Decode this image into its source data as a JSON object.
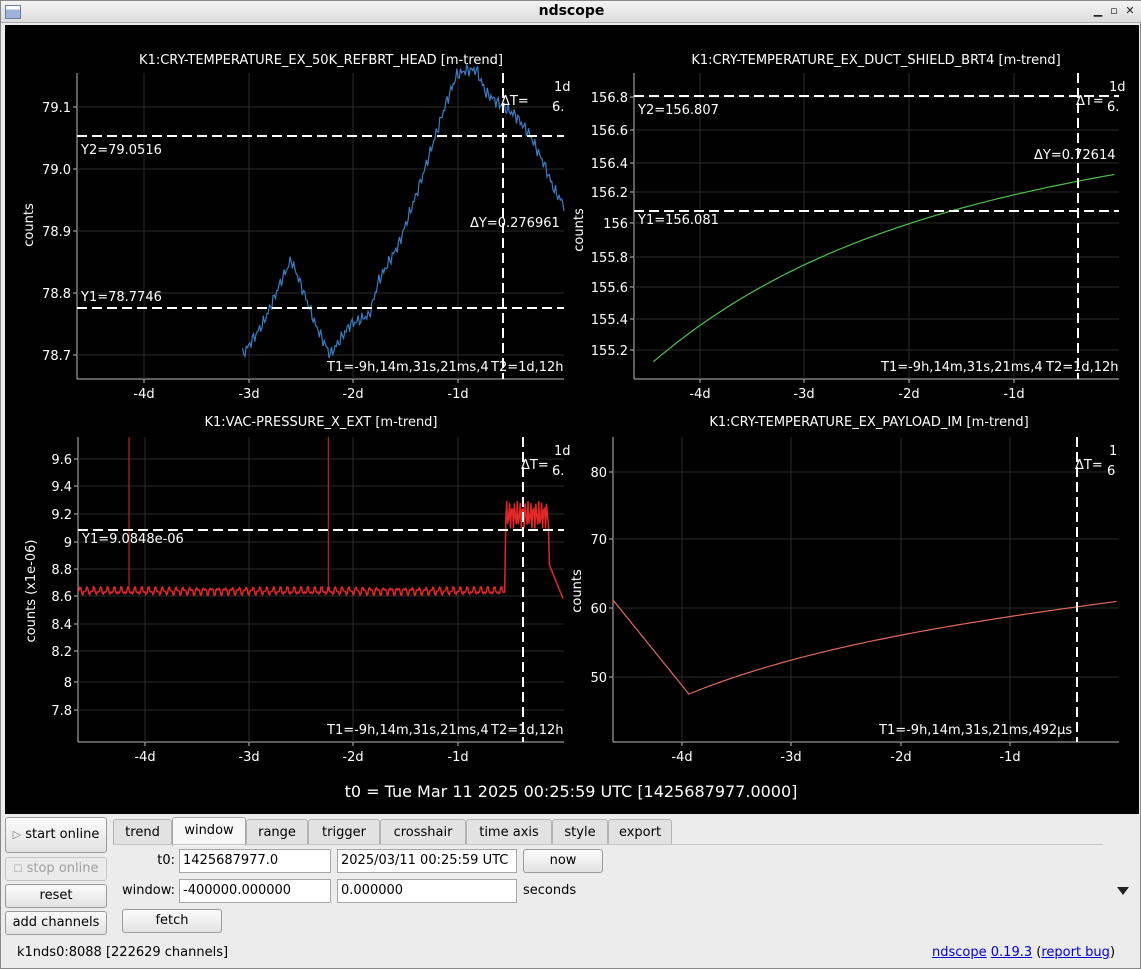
{
  "window": {
    "title": "ndscope"
  },
  "plots": [
    {
      "title": "K1:CRY-TEMPERATURE_EX_50K_REFBRT_HEAD [m-trend]",
      "ylabel": "counts",
      "yticks": [
        "79.1",
        "79.0",
        "78.9",
        "78.8",
        "78.7"
      ],
      "xticks": [
        "-4d",
        "-3d",
        "-2d",
        "-1d"
      ],
      "y2_label": "Y2=79.0516",
      "y1_label": "Y1=78.7746",
      "dy_label": "ΔY=0.276961",
      "dt_label": "ΔT=",
      "dt_corner_top": "1d",
      "dt_corner_bottom": "6.",
      "t1_label": "T1=-9h,14m,31s,21ms,4",
      "t2_label": "T2=1d,12h",
      "color": "#3a7dc4"
    },
    {
      "title": "K1:CRY-TEMPERATURE_EX_DUCT_SHIELD_BRT4 [m-trend]",
      "ylabel": "counts",
      "yticks": [
        "156.8",
        "156.6",
        "156.4",
        "156.2",
        "156",
        "155.8",
        "155.6",
        "155.4",
        "155.2"
      ],
      "xticks": [
        "-4d",
        "-3d",
        "-2d",
        "-1d"
      ],
      "y2_label": "Y2=156.807",
      "y1_label": "Y1=156.081",
      "dy_label": "ΔY=0.72614",
      "dt_label": "ΔT=",
      "dt_corner_top": "1d",
      "dt_corner_bottom": "6.",
      "t1_label": "T1=-9h,14m,31s,21ms,4",
      "t2_label": "T2=1d,12h",
      "color": "#4ec34e"
    },
    {
      "title": "K1:VAC-PRESSURE_X_EXT [m-trend]",
      "ylabel": "counts (x1e-06)",
      "yticks": [
        "9.6",
        "9.4",
        "9.2",
        "9",
        "8.8",
        "8.6",
        "8.4",
        "8.2",
        "8",
        "7.8"
      ],
      "xticks": [
        "-4d",
        "-3d",
        "-2d",
        "-1d"
      ],
      "y1_label": "Y1=9.0848e-06",
      "dt_label": "ΔT=",
      "dt_corner_top": "1d",
      "dt_corner_bottom": "6.",
      "t1_label": "T1=-9h,14m,31s,21ms,4",
      "t2_label": "T2=1d,12h",
      "color": "#e02828"
    },
    {
      "title": "K1:CRY-TEMPERATURE_EX_PAYLOAD_IM [m-trend]",
      "ylabel": "counts",
      "yticks": [
        "80",
        "70",
        "60",
        "50"
      ],
      "xticks": [
        "-4d",
        "-3d",
        "-2d",
        "-1d"
      ],
      "dt_label": "ΔT=",
      "dt_corner_top": "1",
      "dt_corner_bottom": "6",
      "t1_label": "T1=-9h,14m,31s,21ms,492µs",
      "color": "#e06a5a"
    }
  ],
  "t0_caption": "t0 = Tue Mar 11 2025 00:25:59 UTC [1425687977.0000]",
  "controls": {
    "start_online": "start online",
    "stop_online": "stop online",
    "reset": "reset",
    "add_channels": "add channels",
    "tabs": [
      "trend",
      "window",
      "range",
      "trigger",
      "crosshair",
      "time axis",
      "style",
      "export"
    ],
    "active_tab": "window",
    "t0_label": "t0:",
    "t0_gps": "1425687977.0",
    "t0_utc": "2025/03/11 00:25:59 UTC",
    "now": "now",
    "window_label": "window:",
    "window_start": "-400000.000000",
    "window_end": "0.000000",
    "seconds": "seconds",
    "fetch": "fetch"
  },
  "status": {
    "server": "k1nds0:8088",
    "channels": "[222629 channels]",
    "app_link": "ndscope",
    "version_link": "0.19.3",
    "bug_link": "report bug"
  }
}
